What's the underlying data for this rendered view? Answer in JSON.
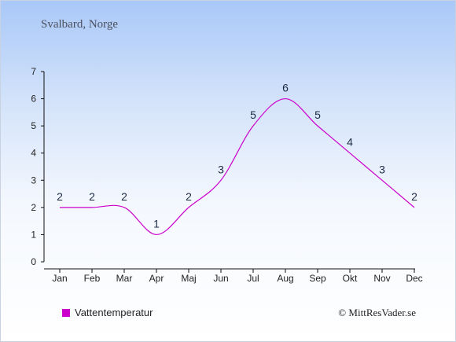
{
  "header": {
    "location": "Svalbard, Norge"
  },
  "legend": {
    "series_label": "Vattentemperatur",
    "color": "#cc00cc"
  },
  "footer": {
    "copyright": "© MittResVader.se"
  },
  "chart_data": {
    "type": "line",
    "categories": [
      "Jan",
      "Feb",
      "Mar",
      "Apr",
      "Maj",
      "Jun",
      "Jul",
      "Aug",
      "Sep",
      "Okt",
      "Nov",
      "Dec"
    ],
    "series": [
      {
        "name": "Vattentemperatur",
        "values": [
          2,
          2,
          2,
          1,
          2,
          3,
          5,
          6,
          5,
          4,
          3,
          2
        ],
        "color": "#cc00cc"
      }
    ],
    "ylim": [
      0,
      7
    ],
    "yticks": [
      "0",
      "1",
      "2",
      "3",
      "4",
      "5",
      "6",
      "7"
    ],
    "grid": false,
    "legend_position": "bottom-left"
  }
}
